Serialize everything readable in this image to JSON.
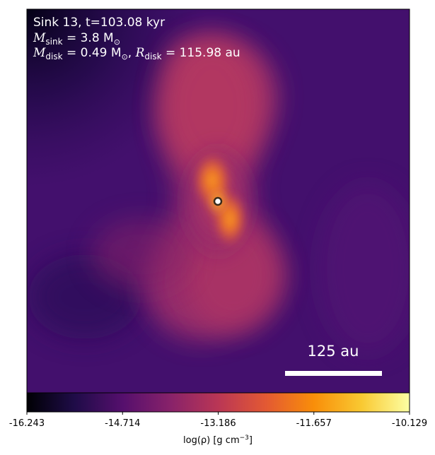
{
  "annotation": {
    "line1": "Sink 13, t=103.08 kyr",
    "line2_symbol": "M",
    "line2_sub": "sink",
    "line2_rest": " = 3.8 M",
    "line2_sun": "⊙",
    "line3_symbol": "M",
    "line3_sub": "disk",
    "line3_mid": " = 0.49 M",
    "line3_sun": "⊙",
    "line3_sep": ", ",
    "line3_rsym": "R",
    "line3_rsub": "disk",
    "line3_rest": " = 115.98 au"
  },
  "scalebar": {
    "label": "125 au"
  },
  "colorbar": {
    "ticks": [
      "-16.243",
      "-14.714",
      "-13.186",
      "-11.657",
      "-10.129"
    ],
    "label": "log(ρ) [g cm",
    "label_sup": "−3",
    "label_end": "]",
    "colors": [
      "#000004",
      "#1f0c48",
      "#550f6d",
      "#88226a",
      "#ba3655",
      "#e35933",
      "#f98e09",
      "#f9c932",
      "#fcffa4"
    ]
  },
  "colors": {
    "sink_fill": "#ffffff",
    "sink_edge": "#3a2a1a",
    "annotation_text": "#ffffff"
  }
}
